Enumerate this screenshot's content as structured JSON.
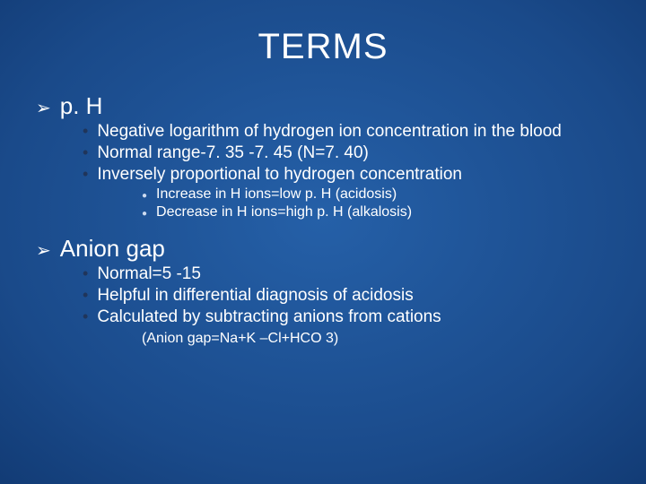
{
  "colors": {
    "background_center": "#2560a8",
    "background_edge": "#06234d",
    "text": "#ffffff",
    "bullet_dark": "#20355a",
    "bullet_light": "#cddbf0"
  },
  "typography": {
    "title_fontsize": 40,
    "level1_fontsize": 26,
    "level2_fontsize": 19,
    "level3_fontsize": 16,
    "font_family": "Arial"
  },
  "title": "TERMS",
  "sections": [
    {
      "heading": "p. H",
      "bullets": [
        {
          "text": "Negative logarithm of hydrogen ion concentration in the blood",
          "sub": []
        },
        {
          "text": "Normal range-7. 35 -7. 45 (N=7. 40)",
          "sub": []
        },
        {
          "text": "Inversely proportional to hydrogen concentration",
          "sub": [
            "Increase in H ions=low p. H (acidosis)",
            "Decrease in H ions=high p. H (alkalosis)"
          ]
        }
      ]
    },
    {
      "heading": "Anion gap",
      "bullets": [
        {
          "text": "Normal=5 -15",
          "sub": []
        },
        {
          "text": "Helpful in differential diagnosis of acidosis",
          "sub": []
        },
        {
          "text": "Calculated by subtracting anions from cations",
          "formula": "(Anion gap=Na+K –Cl+HCO 3)"
        }
      ]
    }
  ]
}
